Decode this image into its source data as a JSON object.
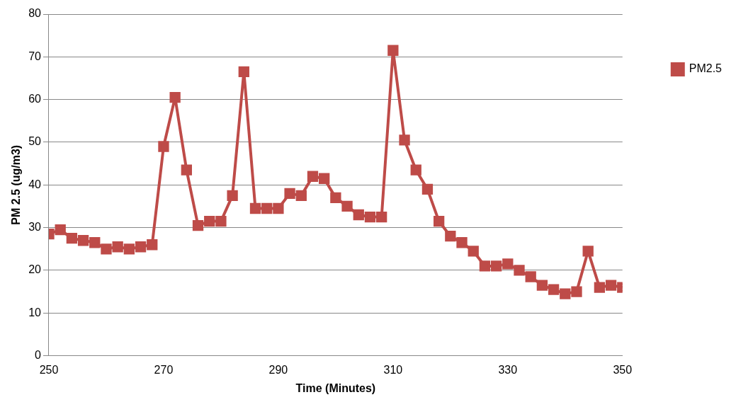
{
  "chart_data": {
    "type": "line",
    "xlabel": "Time (Minutes)",
    "ylabel": "PM 2.5 (ug/m3)",
    "x": [
      250,
      252,
      254,
      256,
      258,
      260,
      262,
      264,
      266,
      268,
      270,
      272,
      274,
      276,
      278,
      280,
      282,
      284,
      286,
      288,
      290,
      292,
      294,
      296,
      298,
      300,
      302,
      304,
      306,
      308,
      310,
      312,
      314,
      316,
      318,
      320,
      322,
      324,
      326,
      328,
      330,
      332,
      334,
      336,
      338,
      340,
      342,
      344,
      346,
      348,
      350
    ],
    "series": [
      {
        "name": "PM2.5",
        "color": "#be4b48",
        "values": [
          28.5,
          29.5,
          27.5,
          27,
          26.5,
          25,
          25.5,
          25,
          25.5,
          26,
          49,
          60.5,
          43.5,
          30.5,
          31.5,
          31.5,
          37.5,
          66.5,
          34.5,
          34.5,
          34.5,
          38,
          37.5,
          42,
          41.5,
          37,
          35,
          33,
          32.5,
          32.5,
          71.5,
          50.5,
          43.5,
          39,
          31.5,
          28,
          26.5,
          24.5,
          21,
          21,
          21.5,
          20,
          18.5,
          16.5,
          15.5,
          14.5,
          15,
          24.5,
          16,
          16.5,
          16
        ]
      }
    ],
    "xlim": [
      250,
      350
    ],
    "xticks": [
      250,
      270,
      290,
      310,
      330,
      350
    ],
    "ylim": [
      0,
      80
    ],
    "yticks": [
      0,
      10,
      20,
      30,
      40,
      50,
      60,
      70,
      80
    ],
    "grid": "y",
    "legend": "right",
    "marker": "square",
    "line_style": "solid"
  }
}
